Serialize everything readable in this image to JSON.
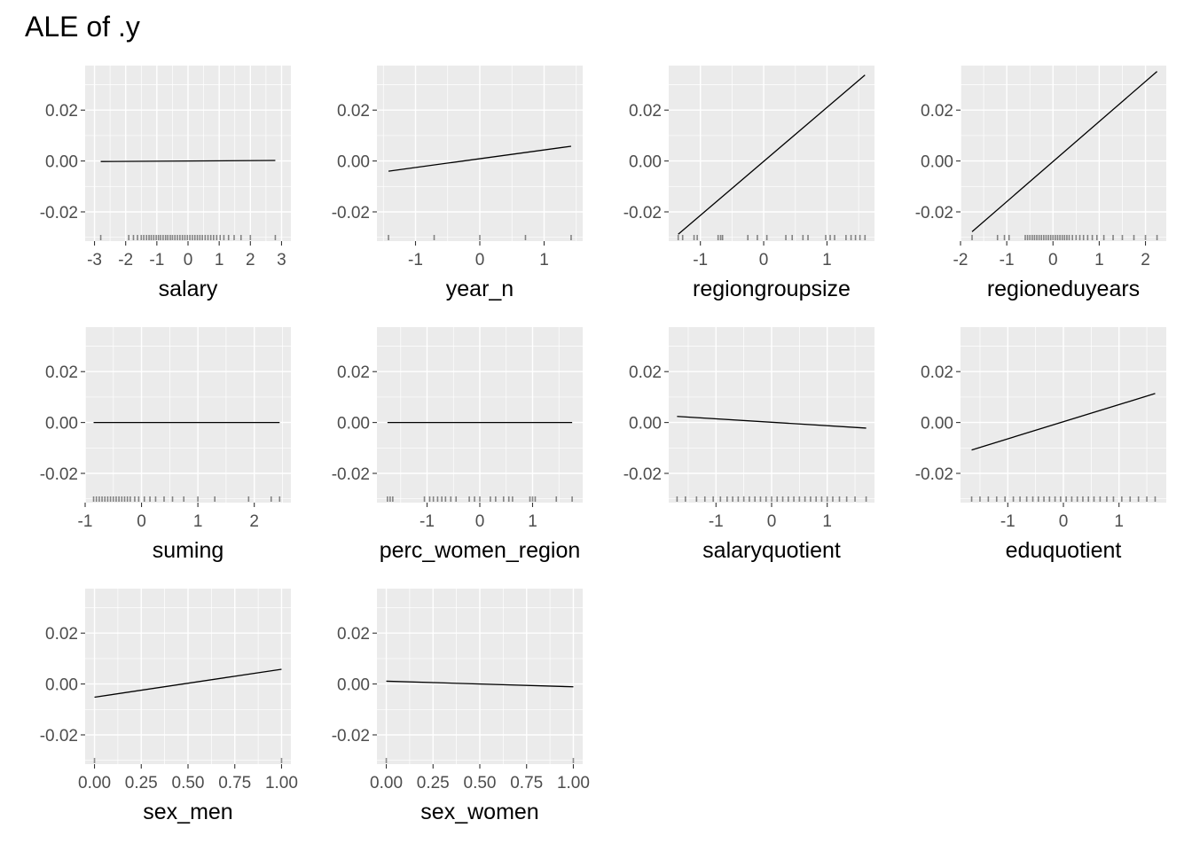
{
  "title": "ALE of .y",
  "chart_data": {
    "type": "line",
    "title": "ALE of .y",
    "ylabel": "",
    "ylim": [
      -0.0315,
      0.0375
    ],
    "yticks": [
      -0.02,
      0.0,
      0.02
    ],
    "ytick_labels": [
      "-0.02",
      "0.00",
      "0.02"
    ],
    "grid": true,
    "background": "#ebebeb",
    "line_color": "#000000",
    "panels": [
      {
        "xlabel": "salary",
        "xlim": [
          -3.3,
          3.3
        ],
        "xticks": [
          -3,
          -2,
          -1,
          0,
          1,
          2,
          3
        ],
        "xtick_labels": [
          "-3",
          "-2",
          "-1",
          "0",
          "1",
          "2",
          "3"
        ],
        "x": [
          -2.8,
          2.8
        ],
        "y": [
          -0.0002,
          0.0002
        ],
        "rug": [
          -2.8,
          -1.9,
          -1.75,
          -1.62,
          -1.5,
          -1.42,
          -1.33,
          -1.25,
          -1.18,
          -1.1,
          -1.02,
          -0.95,
          -0.88,
          -0.8,
          -0.72,
          -0.65,
          -0.57,
          -0.5,
          -0.42,
          -0.34,
          -0.26,
          -0.18,
          -0.1,
          -0.02,
          0.06,
          0.14,
          0.22,
          0.3,
          0.38,
          0.46,
          0.55,
          0.64,
          0.73,
          0.82,
          0.92,
          1.03,
          1.15,
          1.3,
          1.48,
          1.7,
          2.0,
          2.8
        ]
      },
      {
        "xlabel": "year_n",
        "xlim": [
          -1.6,
          1.6
        ],
        "xticks": [
          -1,
          0,
          1
        ],
        "xtick_labels": [
          "-1",
          "0",
          "1"
        ],
        "x": [
          -1.42,
          1.42
        ],
        "y": [
          -0.004,
          0.0058
        ],
        "rug": [
          -1.42,
          -0.71,
          0.0,
          0.71,
          1.42
        ]
      },
      {
        "xlabel": "regiongroupsize",
        "xlim": [
          -1.5,
          1.75
        ],
        "xticks": [
          -1,
          0,
          1
        ],
        "xtick_labels": [
          "-1",
          "0",
          "1"
        ],
        "x": [
          -1.35,
          1.6
        ],
        "y": [
          -0.0288,
          0.0338
        ],
        "rug": [
          -1.35,
          -1.28,
          -1.1,
          -1.05,
          -0.72,
          -0.68,
          -0.65,
          -0.25,
          -0.1,
          0.05,
          0.35,
          0.45,
          0.62,
          0.7,
          0.98,
          1.05,
          1.12,
          1.3,
          1.38,
          1.45,
          1.52,
          1.6
        ]
      },
      {
        "xlabel": "regioneduyears",
        "xlim": [
          -2.0,
          2.45
        ],
        "xticks": [
          -2,
          -1,
          0,
          1,
          2
        ],
        "xtick_labels": [
          "-2",
          "-1",
          "0",
          "1",
          "2"
        ],
        "x": [
          -1.75,
          2.25
        ],
        "y": [
          -0.0278,
          0.0352
        ],
        "rug": [
          -1.75,
          -1.2,
          -1.05,
          -0.95,
          -0.6,
          -0.55,
          -0.5,
          -0.45,
          -0.4,
          -0.35,
          -0.3,
          -0.25,
          -0.2,
          -0.15,
          -0.1,
          -0.05,
          0.0,
          0.05,
          0.1,
          0.15,
          0.2,
          0.25,
          0.3,
          0.35,
          0.42,
          0.5,
          0.58,
          0.66,
          0.75,
          0.85,
          0.95,
          1.1,
          1.3,
          1.5,
          1.75,
          2.0,
          2.25
        ]
      },
      {
        "xlabel": "suming",
        "xlim": [
          -1.0,
          2.65
        ],
        "xticks": [
          -1,
          0,
          1,
          2
        ],
        "xtick_labels": [
          "-1",
          "0",
          "1",
          "2"
        ],
        "x": [
          -0.85,
          2.45
        ],
        "y": [
          0.0,
          0.0
        ],
        "rug": [
          -0.85,
          -0.8,
          -0.75,
          -0.7,
          -0.65,
          -0.6,
          -0.55,
          -0.5,
          -0.45,
          -0.4,
          -0.35,
          -0.3,
          -0.25,
          -0.2,
          -0.12,
          -0.05,
          0.05,
          0.15,
          0.25,
          0.4,
          0.55,
          0.75,
          1.0,
          1.3,
          1.9,
          2.3,
          2.45
        ]
      },
      {
        "xlabel": "perc_women_region",
        "xlim": [
          -1.95,
          1.95
        ],
        "xticks": [
          -1,
          0,
          1
        ],
        "xtick_labels": [
          "-1",
          "0",
          "1"
        ],
        "x": [
          -1.75,
          1.75
        ],
        "y": [
          0.0,
          0.0
        ],
        "rug": [
          -1.75,
          -1.7,
          -1.65,
          -1.05,
          -0.95,
          -0.88,
          -0.8,
          -0.72,
          -0.65,
          -0.55,
          -0.45,
          -0.2,
          -0.1,
          0.0,
          0.2,
          0.3,
          0.45,
          0.55,
          0.62,
          0.95,
          1.0,
          1.05,
          1.45,
          1.75
        ]
      },
      {
        "xlabel": "salaryquotient",
        "xlim": [
          -1.85,
          1.85
        ],
        "xticks": [
          -1,
          0,
          1
        ],
        "xtick_labels": [
          "-1",
          "0",
          "1"
        ],
        "x": [
          -1.7,
          1.7
        ],
        "y": [
          0.0024,
          -0.0022
        ],
        "rug": [
          -1.7,
          -1.55,
          -1.35,
          -1.2,
          -1.05,
          -0.92,
          -0.8,
          -0.7,
          -0.6,
          -0.5,
          -0.4,
          -0.3,
          -0.2,
          -0.1,
          0.0,
          0.1,
          0.2,
          0.3,
          0.4,
          0.5,
          0.6,
          0.7,
          0.8,
          0.9,
          1.0,
          1.1,
          1.22,
          1.35,
          1.5,
          1.7
        ]
      },
      {
        "xlabel": "eduquotient",
        "xlim": [
          -1.85,
          1.85
        ],
        "xticks": [
          -1,
          0,
          1
        ],
        "xtick_labels": [
          "-1",
          "0",
          "1"
        ],
        "x": [
          -1.65,
          1.65
        ],
        "y": [
          -0.0108,
          0.0114
        ],
        "rug": [
          -1.65,
          -1.5,
          -1.35,
          -1.2,
          -1.05,
          -0.9,
          -0.78,
          -0.66,
          -0.55,
          -0.45,
          -0.35,
          -0.25,
          -0.15,
          -0.05,
          0.05,
          0.15,
          0.25,
          0.35,
          0.45,
          0.55,
          0.66,
          0.78,
          0.9,
          1.05,
          1.2,
          1.35,
          1.5,
          1.65
        ]
      },
      {
        "xlabel": "sex_men",
        "xlim": [
          -0.05,
          1.05
        ],
        "xticks": [
          0,
          0.25,
          0.5,
          0.75,
          1.0
        ],
        "xtick_labels": [
          "0.00",
          "0.25",
          "0.50",
          "0.75",
          "1.00"
        ],
        "x": [
          0.0,
          1.0
        ],
        "y": [
          -0.0052,
          0.0058
        ],
        "rug": [
          0.0,
          1.0
        ]
      },
      {
        "xlabel": "sex_women",
        "xlim": [
          -0.05,
          1.05
        ],
        "xticks": [
          0,
          0.25,
          0.5,
          0.75,
          1.0
        ],
        "xtick_labels": [
          "0.00",
          "0.25",
          "0.50",
          "0.75",
          "1.00"
        ],
        "x": [
          0.0,
          1.0
        ],
        "y": [
          0.0011,
          -0.0011
        ],
        "rug": [
          0.0,
          1.0
        ]
      }
    ]
  }
}
